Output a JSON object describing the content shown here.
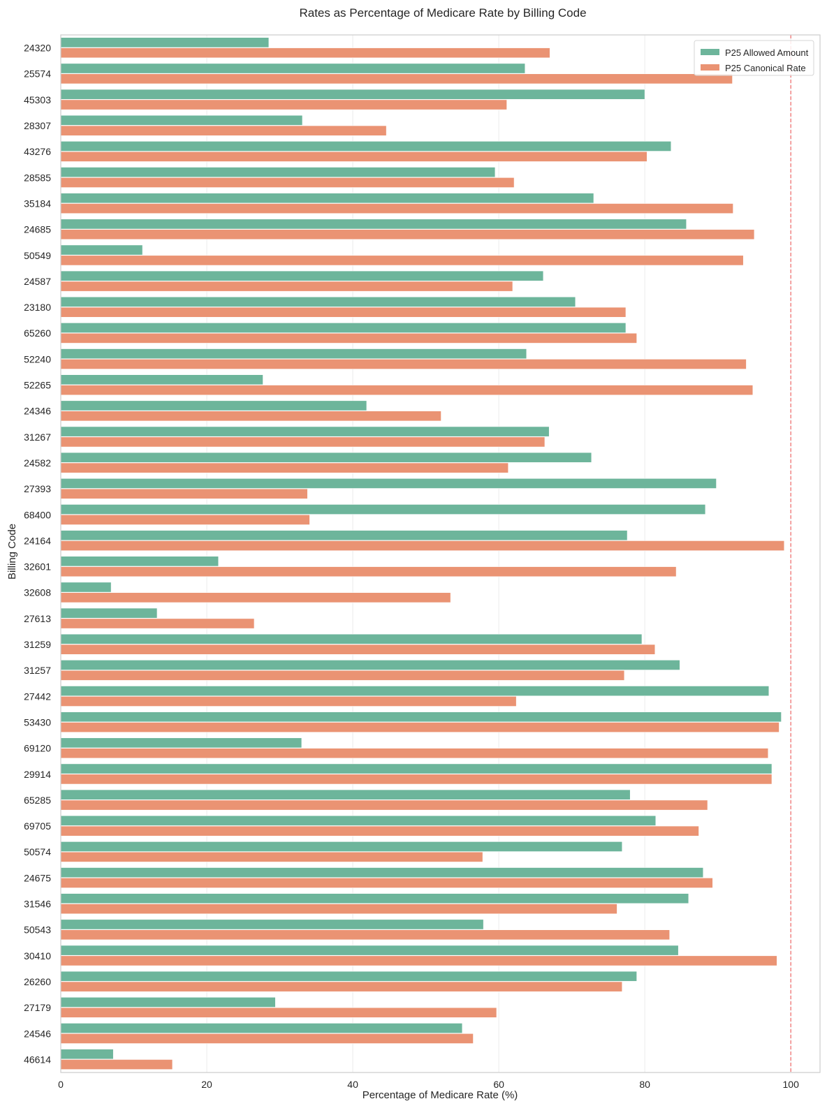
{
  "chart_data": {
    "type": "bar",
    "orientation": "horizontal",
    "title": "Rates as Percentage of Medicare Rate by Billing Code",
    "xlabel": "Percentage of Medicare Rate (%)",
    "ylabel": "Billing Code",
    "xlim": [
      0,
      104
    ],
    "xticks": [
      0,
      20,
      40,
      60,
      80,
      100
    ],
    "grid": true,
    "legend_position": "top-right",
    "reference_line": {
      "value": 100,
      "style": "dashed",
      "color": "#f07a7a"
    },
    "categories": [
      "24320",
      "25574",
      "45303",
      "28307",
      "43276",
      "28585",
      "35184",
      "24685",
      "50549",
      "24587",
      "23180",
      "65260",
      "52240",
      "52265",
      "24346",
      "31267",
      "24582",
      "27393",
      "68400",
      "24164",
      "32601",
      "32608",
      "27613",
      "31259",
      "31257",
      "27442",
      "53430",
      "69120",
      "29914",
      "65285",
      "69705",
      "50574",
      "24675",
      "31546",
      "50543",
      "30410",
      "26260",
      "27179",
      "24546",
      "46614"
    ],
    "series": [
      {
        "name": "P25 Allowed Amount",
        "color": "#6db59b",
        "values": [
          28.5,
          63.6,
          80.0,
          33.1,
          83.6,
          59.5,
          73.0,
          85.7,
          11.2,
          66.1,
          70.5,
          77.4,
          63.8,
          27.7,
          41.9,
          66.9,
          72.7,
          89.8,
          88.3,
          77.6,
          21.6,
          6.9,
          13.2,
          79.6,
          84.8,
          97.0,
          98.7,
          33.0,
          97.4,
          78.0,
          81.5,
          76.9,
          88.0,
          86.0,
          57.9,
          84.6,
          78.9,
          29.4,
          55.0,
          7.2
        ]
      },
      {
        "name": "P25 Canonical Rate",
        "color": "#ea9373",
        "values": [
          67.0,
          92.0,
          61.1,
          44.6,
          80.3,
          62.1,
          92.1,
          95.0,
          93.5,
          61.9,
          77.4,
          78.9,
          93.9,
          94.8,
          52.1,
          66.3,
          61.3,
          33.8,
          34.1,
          99.1,
          84.3,
          53.4,
          26.5,
          81.4,
          77.2,
          62.4,
          98.4,
          96.9,
          97.4,
          88.6,
          87.4,
          57.8,
          89.3,
          76.2,
          83.4,
          98.1,
          76.9,
          59.7,
          56.5,
          15.3
        ]
      }
    ]
  }
}
